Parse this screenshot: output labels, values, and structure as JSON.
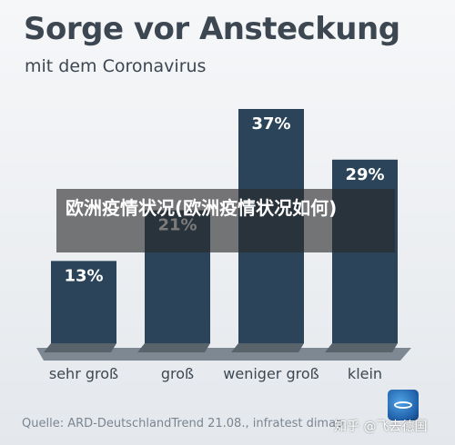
{
  "chart_data": {
    "type": "bar",
    "title": "Sorge vor Ansteckung",
    "subtitle": "mit dem Coronavirus",
    "categories": [
      "sehr groß",
      "groß",
      "weniger groß",
      "klein"
    ],
    "values": [
      13,
      21,
      37,
      29
    ],
    "value_labels": [
      "13%",
      "21%",
      "37%",
      "29%"
    ],
    "unit": "%",
    "ylim": [
      0,
      40
    ],
    "grid": false,
    "bar_color": "#2b4459",
    "label_color": "#ffffff"
  },
  "source": "Quelle: ARD-DeutschlandTrend 21.08., infratest dimap",
  "watermark": "知乎 @飞去德国",
  "overlay_title": "欧洲疫情状况(欧洲疫情状况如何)",
  "logo_icon": "ard-tagesschau-logo-icon"
}
